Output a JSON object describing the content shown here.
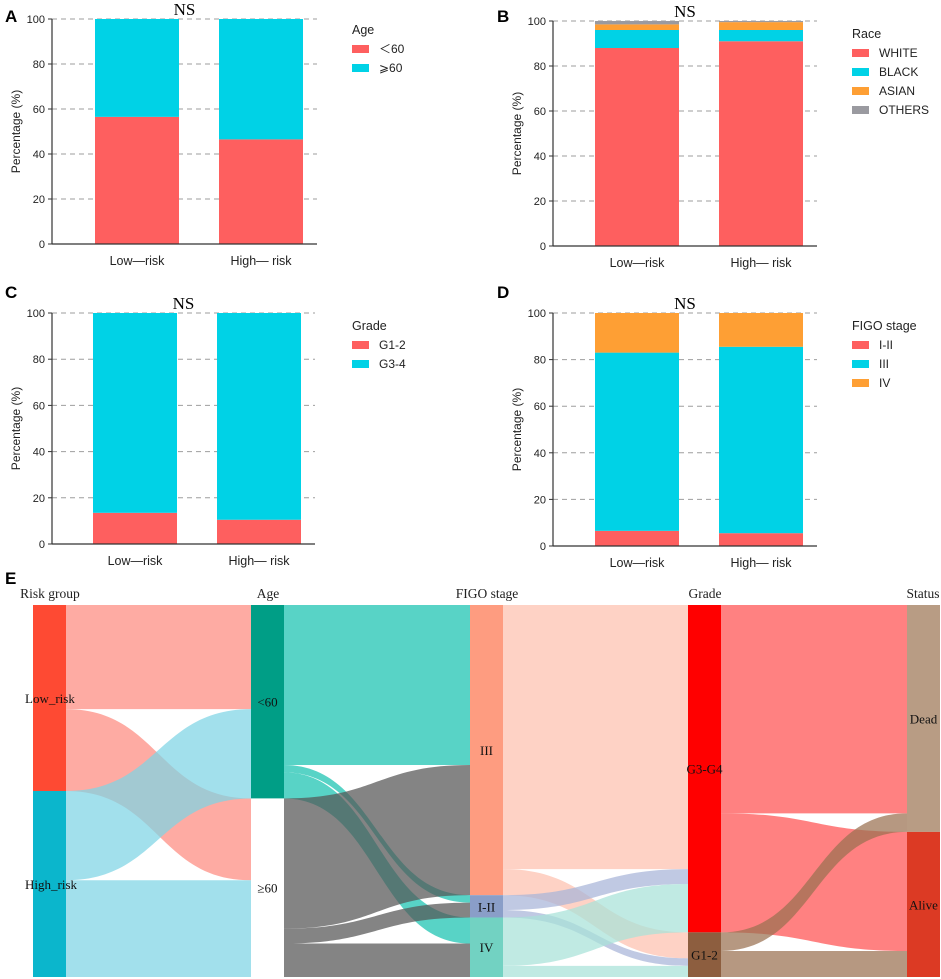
{
  "colors": {
    "red": "#fe5f5f",
    "cyan": "#00d2e6",
    "orange": "#fe9f34",
    "gray": "#9a9aa0",
    "grid": "#9e9e9e",
    "axis": "#333333"
  },
  "chart_data": [
    {
      "panel": "A",
      "type": "bar",
      "stacked": true,
      "title": "NS",
      "ylabel": "Percentage (%)",
      "ylim": [
        0,
        100
      ],
      "yticks": [
        0,
        20,
        40,
        60,
        80,
        100
      ],
      "categories": [
        "Low—risk",
        "High— risk"
      ],
      "legend_title": "Age",
      "series": [
        {
          "name": "<60",
          "display": "＜60",
          "color": "#fe5f5f",
          "values": [
            56.5,
            46.5
          ]
        },
        {
          "name": ">=60",
          "display": "⩾60",
          "color": "#00d2e6",
          "values": [
            43.5,
            53.5
          ]
        }
      ]
    },
    {
      "panel": "B",
      "type": "bar",
      "stacked": true,
      "title": "NS",
      "ylabel": "Percentage (%)",
      "ylim": [
        0,
        100
      ],
      "yticks": [
        0,
        20,
        40,
        60,
        80,
        100
      ],
      "categories": [
        "Low—risk",
        "High— risk"
      ],
      "legend_title": "Race",
      "series": [
        {
          "name": "WHITE",
          "display": "WHITE",
          "color": "#fe5f5f",
          "values": [
            88.0,
            91.0
          ]
        },
        {
          "name": "BLACK",
          "display": "BLACK",
          "color": "#00d2e6",
          "values": [
            8.0,
            5.0
          ]
        },
        {
          "name": "ASIAN",
          "display": "ASIAN",
          "color": "#fe9f34",
          "values": [
            2.5,
            3.5
          ]
        },
        {
          "name": "OTHERS",
          "display": "OTHERS",
          "color": "#9a9aa0",
          "values": [
            1.5,
            0.5
          ]
        }
      ]
    },
    {
      "panel": "C",
      "type": "bar",
      "stacked": true,
      "title": "NS",
      "ylabel": "Percentage (%)",
      "ylim": [
        0,
        100
      ],
      "yticks": [
        0,
        20,
        40,
        60,
        80,
        100
      ],
      "categories": [
        "Low—risk",
        "High— risk"
      ],
      "legend_title": "Grade",
      "series": [
        {
          "name": "G1-2",
          "display": "G1-2",
          "color": "#fe5f5f",
          "values": [
            13.5,
            10.5
          ]
        },
        {
          "name": "G3-4",
          "display": "G3-4",
          "color": "#00d2e6",
          "values": [
            86.5,
            89.5
          ]
        }
      ]
    },
    {
      "panel": "D",
      "type": "bar",
      "stacked": true,
      "title": "NS",
      "ylabel": "Percentage (%)",
      "ylim": [
        0,
        100
      ],
      "yticks": [
        0,
        20,
        40,
        60,
        80,
        100
      ],
      "categories": [
        "Low—risk",
        "High— risk"
      ],
      "legend_title": "FIGO stage",
      "series": [
        {
          "name": "I-II",
          "display": "I-II",
          "color": "#fe5f5f",
          "values": [
            6.5,
            5.5
          ]
        },
        {
          "name": "III",
          "display": "III",
          "color": "#00d2e6",
          "values": [
            76.5,
            80.0
          ]
        },
        {
          "name": "IV",
          "display": "IV",
          "color": "#fe9f34",
          "values": [
            17.0,
            14.5
          ]
        }
      ]
    },
    {
      "panel": "E",
      "type": "sankey",
      "stages": [
        "Risk group",
        "Age",
        "FIGO stage",
        "Grade",
        "Status"
      ],
      "nodes": [
        {
          "id": "low",
          "stage": 0,
          "label": "Low_risk",
          "value": 50,
          "color": "#fe4a33"
        },
        {
          "id": "high",
          "stage": 0,
          "label": "High_risk",
          "value": 50,
          "color": "#0bb6cc"
        },
        {
          "id": "lt60",
          "stage": 1,
          "label": "<60",
          "value": 52,
          "color": "#009e86"
        },
        {
          "id": "ge60",
          "stage": 1,
          "label": "≥60",
          "value": 48,
          "color": "#ffffff"
        },
        {
          "id": "iii",
          "stage": 2,
          "label": "III",
          "value": 78,
          "color": "#fe9c80"
        },
        {
          "id": "i_ii",
          "stage": 2,
          "label": "I-II",
          "value": 6,
          "color": "#8a9ec8"
        },
        {
          "id": "iv",
          "stage": 2,
          "label": "IV",
          "value": 16,
          "color": "#72d2c2"
        },
        {
          "id": "g34",
          "stage": 3,
          "label": "G3-G4",
          "value": 88,
          "color": "#ff0000"
        },
        {
          "id": "g12",
          "stage": 3,
          "label": "G1-2",
          "value": 12,
          "color": "#8d5e3f"
        },
        {
          "id": "dead",
          "stage": 4,
          "label": "Dead",
          "value": 61,
          "color": "#b89c84"
        },
        {
          "id": "alive",
          "stage": 4,
          "label": "Alive",
          "value": 39,
          "color": "#dc3a24"
        }
      ],
      "links": [
        {
          "source": "low",
          "target": "lt60",
          "value": 28,
          "color": "#fe8a80"
        },
        {
          "source": "low",
          "target": "ge60",
          "value": 22,
          "color": "#fe8a80"
        },
        {
          "source": "high",
          "target": "lt60",
          "value": 24,
          "color": "#7ed4e4"
        },
        {
          "source": "high",
          "target": "ge60",
          "value": 26,
          "color": "#7ed4e4"
        },
        {
          "source": "lt60",
          "target": "iii",
          "value": 43,
          "color": "#18c2b0"
        },
        {
          "source": "lt60",
          "target": "i_ii",
          "value": 2,
          "color": "#18c2b0"
        },
        {
          "source": "lt60",
          "target": "iv",
          "value": 7,
          "color": "#18c2b0"
        },
        {
          "source": "ge60",
          "target": "iii",
          "value": 35,
          "color": "#555555"
        },
        {
          "source": "ge60",
          "target": "i_ii",
          "value": 4,
          "color": "#555555"
        },
        {
          "source": "ge60",
          "target": "iv",
          "value": 9,
          "color": "#555555"
        },
        {
          "source": "iii",
          "target": "g34",
          "value": 71,
          "color": "#fec0ae"
        },
        {
          "source": "iii",
          "target": "g12",
          "value": 7,
          "color": "#fec0ae"
        },
        {
          "source": "i_ii",
          "target": "g34",
          "value": 4,
          "color": "#a8b4d8"
        },
        {
          "source": "i_ii",
          "target": "g12",
          "value": 2,
          "color": "#a8b4d8"
        },
        {
          "source": "iv",
          "target": "g34",
          "value": 13,
          "color": "#a8e2d8"
        },
        {
          "source": "iv",
          "target": "g12",
          "value": 3,
          "color": "#a8e2d8"
        },
        {
          "source": "g34",
          "target": "dead",
          "value": 56,
          "color": "#ff5050"
        },
        {
          "source": "g34",
          "target": "alive",
          "value": 32,
          "color": "#ff5050"
        },
        {
          "source": "g12",
          "target": "dead",
          "value": 5,
          "color": "#9a7050"
        },
        {
          "source": "g12",
          "target": "alive",
          "value": 7,
          "color": "#9a7050"
        }
      ]
    }
  ]
}
